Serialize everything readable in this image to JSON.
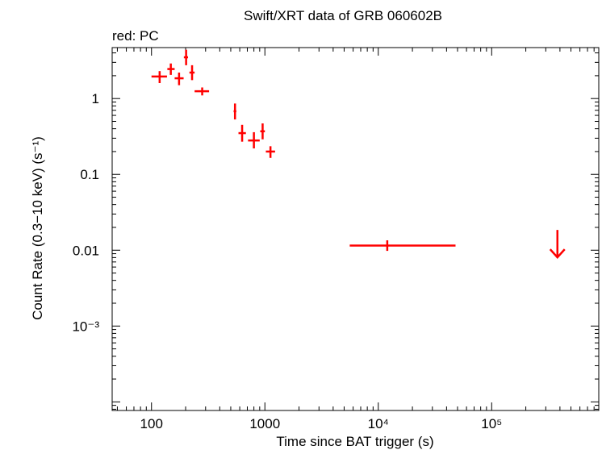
{
  "chart_data": {
    "type": "scatter",
    "title": "Swift/XRT data of GRB 060602B",
    "subtitle": "red: PC",
    "xlabel": "Time since BAT trigger (s)",
    "ylabel": "Count Rate (0.3−10 keV) (s⁻¹)",
    "xscale": "log",
    "yscale": "log",
    "xlim": [
      45,
      880000
    ],
    "ylim": [
      7.7e-05,
      4.7
    ],
    "x_ticks": [
      {
        "value": 100,
        "label": "100"
      },
      {
        "value": 1000,
        "label": "1000"
      },
      {
        "value": 10000,
        "label": "10⁴"
      },
      {
        "value": 100000,
        "label": "10⁵"
      }
    ],
    "y_ticks": [
      {
        "value": 1,
        "label": "1"
      },
      {
        "value": 0.1,
        "label": "0.1"
      },
      {
        "value": 0.01,
        "label": "0.01"
      },
      {
        "value": 0.001,
        "label": "10⁻³"
      }
    ],
    "grid": false,
    "series": [
      {
        "color": "#ff0000",
        "points": [
          {
            "x": 118,
            "y": 1.95,
            "x_lo": 100,
            "x_hi": 137,
            "y_lo": 1.6,
            "y_hi": 2.3
          },
          {
            "x": 148,
            "y": 2.45,
            "x_lo": 138,
            "x_hi": 160,
            "y_lo": 2.05,
            "y_hi": 2.9
          },
          {
            "x": 175,
            "y": 1.85,
            "x_lo": 160,
            "x_hi": 192,
            "y_lo": 1.5,
            "y_hi": 2.2
          },
          {
            "x": 202,
            "y": 3.5,
            "x_lo": 193,
            "x_hi": 210,
            "y_lo": 2.75,
            "y_hi": 4.4
          },
          {
            "x": 228,
            "y": 2.2,
            "x_lo": 216,
            "x_hi": 240,
            "y_lo": 1.75,
            "y_hi": 2.75
          },
          {
            "x": 280,
            "y": 1.25,
            "x_lo": 240,
            "x_hi": 322,
            "y_lo": 1.1,
            "y_hi": 1.4
          },
          {
            "x": 545,
            "y": 0.68,
            "x_lo": 530,
            "x_hi": 560,
            "y_lo": 0.53,
            "y_hi": 0.86
          },
          {
            "x": 630,
            "y": 0.35,
            "x_lo": 585,
            "x_hi": 680,
            "y_lo": 0.27,
            "y_hi": 0.45
          },
          {
            "x": 800,
            "y": 0.28,
            "x_lo": 710,
            "x_hi": 900,
            "y_lo": 0.22,
            "y_hi": 0.36
          },
          {
            "x": 955,
            "y": 0.37,
            "x_lo": 910,
            "x_hi": 1000,
            "y_lo": 0.29,
            "y_hi": 0.47
          },
          {
            "x": 1120,
            "y": 0.2,
            "x_lo": 1020,
            "x_hi": 1230,
            "y_lo": 0.165,
            "y_hi": 0.235
          },
          {
            "x": 12000,
            "y": 0.0115,
            "x_lo": 5600,
            "x_hi": 48000,
            "y_lo": 0.0098,
            "y_hi": 0.0135
          }
        ],
        "upper_limits": [
          {
            "x": 380000,
            "y": 0.0185
          }
        ]
      }
    ]
  }
}
